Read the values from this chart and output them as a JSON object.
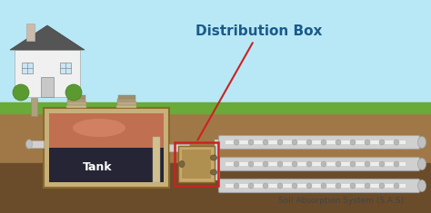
{
  "title": "Distribution Box",
  "tank_label": "Tank",
  "sas_label": "Soil Absorption System (S.A.S)",
  "sky_color": "#b8e8f5",
  "grass_color": "#6aaa38",
  "soil_color": "#a07848",
  "soil_dark": "#6b4c2a",
  "tank_wall_color": "#c8b07a",
  "pipe_color": "#d8d8d8",
  "dbox_color": "#c8a870",
  "dbox_border": "#cc2222",
  "title_color": "#1a5a8a",
  "fig_width": 4.74,
  "fig_height": 2.35
}
